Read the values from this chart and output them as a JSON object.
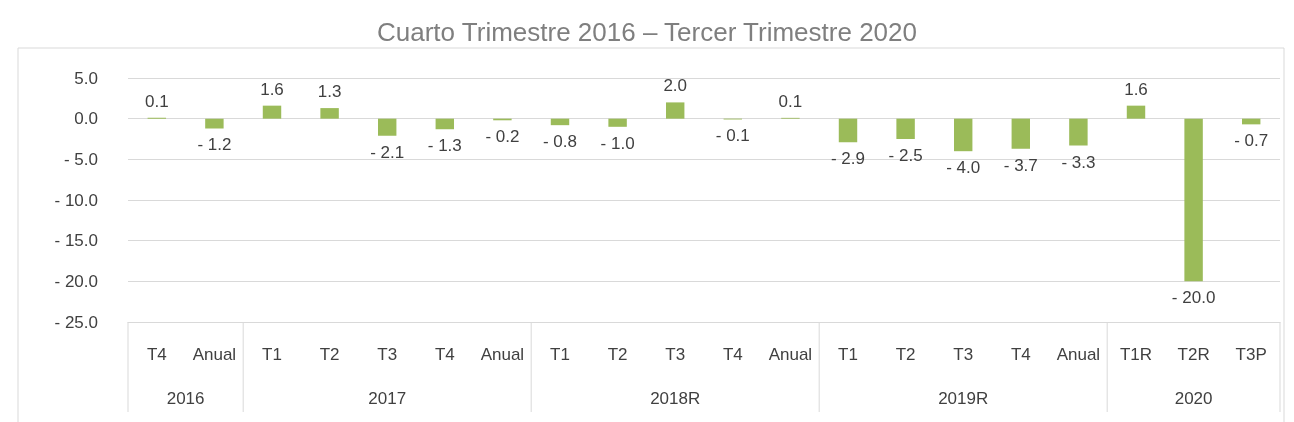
{
  "chart_data": {
    "type": "bar",
    "title": "Cuarto Trimestre 2016 – Tercer Trimestre 2020",
    "categories": [
      "T4",
      "Anual",
      "T1",
      "T2",
      "T3",
      "T4",
      "Anual",
      "T1",
      "T2",
      "T3",
      "T4",
      "Anual",
      "T1",
      "T2",
      "T3",
      "T4",
      "Anual",
      "T1R",
      "T2R",
      "T3P"
    ],
    "values": [
      0.1,
      -1.2,
      1.6,
      1.3,
      -2.1,
      -1.3,
      -0.2,
      -0.8,
      -1.0,
      2.0,
      -0.1,
      0.1,
      -2.9,
      -2.5,
      -4.0,
      -3.7,
      -3.3,
      1.6,
      -20.0,
      -0.7
    ],
    "value_labels": [
      "0.1",
      "- 1.2",
      "1.6",
      "1.3",
      "- 2.1",
      "- 1.3",
      "- 0.2",
      "- 0.8",
      "- 1.0",
      "2.0",
      "- 0.1",
      "0.1",
      "- 2.9",
      "- 2.5",
      "- 4.0",
      "- 3.7",
      "- 3.3",
      "1.6",
      "- 20.0",
      "- 0.7"
    ],
    "color": "#9bbb59",
    "ylim": [
      -25,
      5
    ],
    "yticks": [
      {
        "value": 5,
        "label": "5.0"
      },
      {
        "value": 0,
        "label": "0.0"
      },
      {
        "value": -5,
        "label": "- 5.0"
      },
      {
        "value": -10,
        "label": "- 10.0"
      },
      {
        "value": -15,
        "label": "- 15.0"
      },
      {
        "value": -20,
        "label": "- 20.0"
      },
      {
        "value": -25,
        "label": "- 25.0"
      }
    ],
    "grid": "y",
    "annotations": [
      "2016",
      "2017",
      "2018R",
      "2019R",
      "2020"
    ]
  }
}
